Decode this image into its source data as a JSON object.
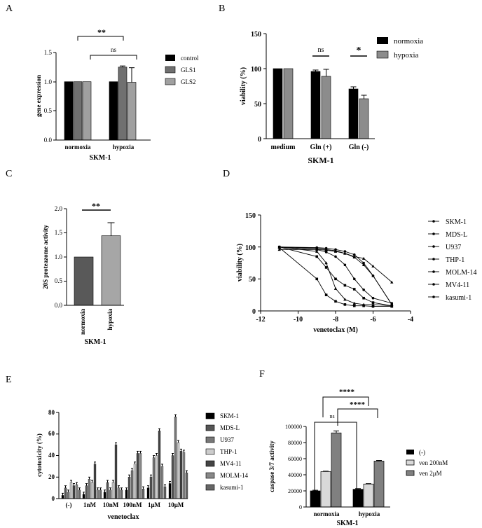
{
  "chart_data": [
    {
      "panel": "A",
      "type": "bar",
      "title": "",
      "ylabel": "gene expression",
      "xlabel": "SKM-1",
      "ylim": [
        0,
        1.5
      ],
      "yticks": [
        "0.0",
        "0.5",
        "1.0",
        "1.5"
      ],
      "categories": [
        "normoxia",
        "hypoxia"
      ],
      "series": [
        {
          "name": "control",
          "values": [
            1.0,
            1.0
          ],
          "errors": [
            0,
            0
          ],
          "color": "#000000"
        },
        {
          "name": "GLS1",
          "values": [
            1.0,
            1.25
          ],
          "errors": [
            0,
            0.02
          ],
          "color": "#707070"
        },
        {
          "name": "GLS2",
          "values": [
            1.0,
            0.99
          ],
          "errors": [
            0,
            0.25
          ],
          "color": "#a0a0a0"
        }
      ],
      "annotations": [
        "**",
        "ns"
      ]
    },
    {
      "panel": "B",
      "type": "bar",
      "ylabel": "viability (%)",
      "xlabel": "SKM-1",
      "ylim": [
        0,
        150
      ],
      "yticks": [
        "0",
        "50",
        "100",
        "150"
      ],
      "categories": [
        "medium",
        "Gln (+)",
        "Gln (-)"
      ],
      "series": [
        {
          "name": "normoxia",
          "values": [
            100,
            96,
            71
          ],
          "errors": [
            0,
            2,
            3
          ],
          "color": "#000000"
        },
        {
          "name": "hypoxia",
          "values": [
            100,
            89,
            57
          ],
          "errors": [
            0,
            10,
            5
          ],
          "color": "#8c8c8c"
        }
      ],
      "annotations": [
        "ns",
        "*"
      ]
    },
    {
      "panel": "C",
      "type": "bar",
      "ylabel": "20S proteazome activity",
      "xlabel": "SKM-1",
      "ylim": [
        0,
        2.0
      ],
      "yticks": [
        "0.0",
        "0.5",
        "1.0",
        "1.5",
        "2.0"
      ],
      "categories": [
        "normoxia",
        "hypoxia"
      ],
      "values": [
        1.0,
        1.44
      ],
      "errors": [
        0,
        0.27
      ],
      "colors": [
        "#595959",
        "#a6a6a6"
      ],
      "annotations": [
        "**"
      ]
    },
    {
      "panel": "D",
      "type": "line",
      "ylabel": "viability (%)",
      "xlabel": "venetoclax (M)",
      "xlim": [
        -12,
        -4
      ],
      "ylim": [
        0,
        150
      ],
      "xticks": [
        "-12",
        "-10",
        "-8",
        "-6",
        "-4"
      ],
      "yticks": [
        "0",
        "50",
        "100",
        "150"
      ],
      "x": [
        -11,
        -9,
        -8.5,
        -8,
        -7.5,
        -7,
        -6.5,
        -6,
        -5
      ],
      "series": [
        {
          "name": "SKM-1",
          "values": [
            100,
            99,
            98,
            96,
            93,
            88,
            75,
            55,
            10
          ]
        },
        {
          "name": "MDS-L",
          "values": [
            100,
            98,
            96,
            94,
            90,
            84,
            72,
            55,
            10
          ]
        },
        {
          "name": "U937",
          "values": [
            100,
            96,
            92,
            85,
            72,
            50,
            33,
            20,
            12
          ]
        },
        {
          "name": "THP-1",
          "values": [
            96,
            96,
            95,
            93,
            90,
            85,
            82,
            70,
            45
          ]
        },
        {
          "name": "MOLM-14",
          "values": [
            100,
            85,
            68,
            50,
            40,
            34,
            20,
            13,
            8
          ]
        },
        {
          "name": "MV4-11",
          "values": [
            100,
            93,
            75,
            35,
            18,
            12,
            10,
            10,
            8
          ]
        },
        {
          "name": "kasumi-1",
          "values": [
            99,
            50,
            25,
            15,
            10,
            8,
            8,
            7,
            7
          ]
        }
      ]
    },
    {
      "panel": "E",
      "type": "bar",
      "ylabel": "cytotoxicity (%)",
      "xlabel": "venetoclax",
      "ylim": [
        0,
        80
      ],
      "yticks": [
        "0",
        "20",
        "40",
        "60",
        "80"
      ],
      "categories": [
        "(-)",
        "1nM",
        "10nM",
        "100nM",
        "1μM",
        "10μM"
      ],
      "series": [
        {
          "name": "SKM-1",
          "values": [
            3,
            4,
            6,
            8,
            10,
            14
          ],
          "color": "#000000"
        },
        {
          "name": "MDS-L",
          "values": [
            10,
            12,
            15,
            20,
            20,
            40
          ],
          "color": "#555555"
        },
        {
          "name": "U937",
          "values": [
            6,
            18,
            8,
            26,
            38,
            76
          ],
          "color": "#777777"
        },
        {
          "name": "THP-1",
          "values": [
            15,
            15,
            15,
            32,
            40,
            52
          ],
          "color": "#cccccc"
        },
        {
          "name": "MV4-11",
          "values": [
            12,
            32,
            50,
            42,
            63,
            44
          ],
          "color": "#444444"
        },
        {
          "name": "MOLM-14",
          "values": [
            13,
            8,
            10,
            42,
            30,
            43
          ],
          "color": "#888888"
        },
        {
          "name": "kasumi-1",
          "values": [
            8,
            8,
            8,
            9,
            11,
            24
          ],
          "color": "#666666"
        }
      ]
    },
    {
      "panel": "F",
      "type": "bar",
      "ylabel": "caspase 3/7 activity",
      "xlabel": "SKM-1",
      "ylim": [
        0,
        100000
      ],
      "yticks": [
        "0",
        "20000",
        "40000",
        "60000",
        "80000",
        "100000"
      ],
      "categories": [
        "normoxia",
        "hypoxia"
      ],
      "series": [
        {
          "name": "(-)",
          "values": [
            20000,
            22000
          ],
          "errors": [
            800,
            800
          ],
          "color": "#000000"
        },
        {
          "name": "ven 200nM",
          "values": [
            44000,
            28500
          ],
          "errors": [
            500,
            500
          ],
          "color": "#d9d9d9"
        },
        {
          "name": "ven 2μM",
          "values": [
            92000,
            57000
          ],
          "errors": [
            2500,
            800
          ],
          "color": "#808080"
        }
      ],
      "annotations": [
        "****",
        "****",
        "ns"
      ]
    }
  ],
  "panels": {
    "A": {
      "letter": "A",
      "ylabel": "gene expression",
      "xlabel": "SKM-1",
      "cat0": "normoxia",
      "cat1": "hypoxia",
      "t0": "0.0",
      "t1": "0.5",
      "t2": "1.0",
      "t3": "1.5",
      "sig1": "**",
      "sig2": "ns",
      "leg0": "control",
      "leg1": "GLS1",
      "leg2": "GLS2"
    },
    "B": {
      "letter": "B",
      "ylabel": "viability (%)",
      "xlabel": "SKM-1",
      "cat0": "medium",
      "cat1": "Gln (+)",
      "cat2": "Gln (-)",
      "t0": "0",
      "t1": "50",
      "t2": "100",
      "t3": "150",
      "sig1": "ns",
      "sig2": "*",
      "leg0": "normoxia",
      "leg1": "hypoxia"
    },
    "C": {
      "letter": "C",
      "ylabel": "20S proteazome activity",
      "xlabel": "SKM-1",
      "cat0": "normoxia",
      "cat1": "hypoxia",
      "t0": "0.0",
      "t1": "0.5",
      "t2": "1.0",
      "t3": "1.5",
      "t4": "2.0",
      "sig1": "**"
    },
    "D": {
      "letter": "D",
      "ylabel": "viability (%)",
      "xlabel": "venetoclax (M)",
      "x0": "-12",
      "x1": "-10",
      "x2": "-8",
      "x3": "-6",
      "x4": "-4",
      "t0": "0",
      "t1": "50",
      "t2": "100",
      "t3": "150",
      "leg0": "SKM-1",
      "leg1": "MDS-L",
      "leg2": "U937",
      "leg3": "THP-1",
      "leg4": "MOLM-14",
      "leg5": "MV4-11",
      "leg6": "kasumi-1"
    },
    "E": {
      "letter": "E",
      "ylabel": "cytotoxicity (%)",
      "xlabel": "venetoclax",
      "cat0": "(-)",
      "cat1": "1nM",
      "cat2": "10nM",
      "cat3": "100nM",
      "cat4": "1μM",
      "cat5": "10μM",
      "t0": "0",
      "t1": "20",
      "t2": "40",
      "t3": "60",
      "t4": "80",
      "leg0": "SKM-1",
      "leg1": "MDS-L",
      "leg2": "U937",
      "leg3": "THP-1",
      "leg4": "MV4-11",
      "leg5": "MOLM-14",
      "leg6": "kasumi-1"
    },
    "F": {
      "letter": "F",
      "ylabel": "caspase 3/7 activity",
      "xlabel": "SKM-1",
      "cat0": "normoxia",
      "cat1": "hypoxia",
      "t0": "0",
      "t1": "20000",
      "t2": "40000",
      "t3": "60000",
      "t4": "80000",
      "t5": "100000",
      "sig1": "****",
      "sig2": "****",
      "sig3": "ns",
      "leg0": "(-)",
      "leg1": "ven 200nM",
      "leg2": "ven 2μM"
    }
  }
}
